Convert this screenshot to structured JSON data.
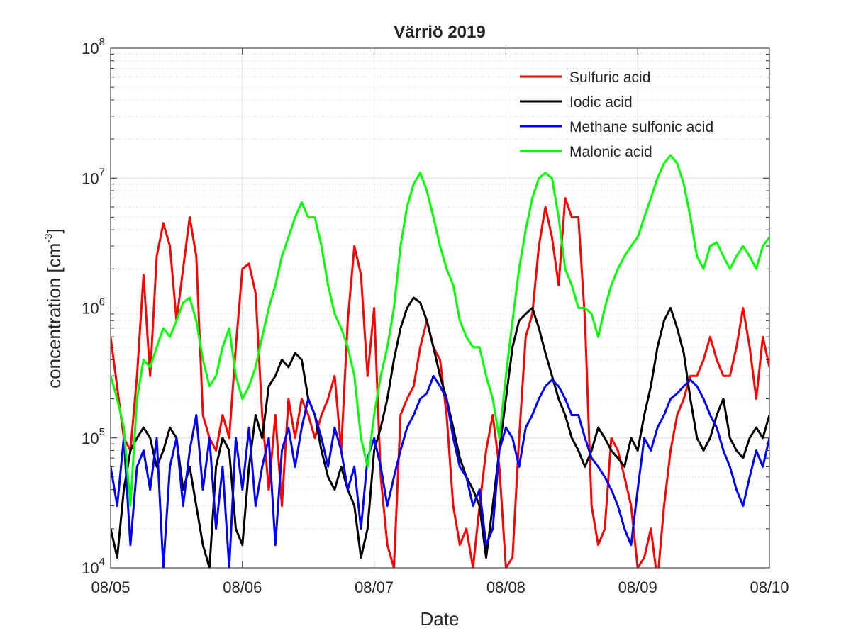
{
  "chart_data": {
    "type": "line",
    "title": "Värriö 2019",
    "xlabel": "Date",
    "ylabel": {
      "base": "concentration [cm",
      "exp": "-3",
      "close": "]"
    },
    "x_ticks": [
      "08/05",
      "08/06",
      "08/07",
      "08/08",
      "08/09",
      "08/10"
    ],
    "xlim": [
      "08/05",
      "08/10"
    ],
    "y_scale": "log",
    "ylim": [
      10000,
      100000000
    ],
    "y_ticks": [
      {
        "base": "10",
        "exp": "4"
      },
      {
        "base": "10",
        "exp": "5"
      },
      {
        "base": "10",
        "exp": "6"
      },
      {
        "base": "10",
        "exp": "7"
      },
      {
        "base": "10",
        "exp": "8"
      }
    ],
    "grid": true,
    "minor_grid": true,
    "legend_position": "top-right",
    "series": [
      {
        "name": "Sulfuric acid",
        "color": "#ff0000",
        "x": [
          0.0,
          0.1,
          0.15,
          0.2,
          0.25,
          0.3,
          0.35,
          0.4,
          0.45,
          0.5,
          0.55,
          0.6,
          0.65,
          0.7,
          0.75,
          0.8,
          0.85,
          0.9,
          0.95,
          1.0,
          1.05,
          1.1,
          1.15,
          1.2,
          1.25,
          1.3,
          1.35,
          1.4,
          1.45,
          1.5,
          1.55,
          1.6,
          1.65,
          1.7,
          1.75,
          1.8,
          1.85,
          1.9,
          1.95,
          2.0,
          2.05,
          2.1,
          2.15,
          2.2,
          2.25,
          2.3,
          2.35,
          2.4,
          2.45,
          2.5,
          2.55,
          2.6,
          2.65,
          2.7,
          2.75,
          2.8,
          2.85,
          2.9,
          2.95,
          3.0,
          3.05,
          3.1,
          3.15,
          3.2,
          3.25,
          3.3,
          3.35,
          3.4,
          3.45,
          3.5,
          3.55,
          3.6,
          3.65,
          3.7,
          3.75,
          3.8,
          3.85,
          3.9,
          3.95,
          4.0,
          4.05,
          4.1,
          4.15,
          4.2,
          4.25,
          4.3,
          4.35,
          4.4,
          4.45,
          4.5,
          4.55,
          4.6,
          4.65,
          4.7,
          4.75,
          4.8,
          4.85,
          4.9,
          4.95,
          5.0
        ],
        "y": [
          600000,
          100000,
          80000,
          300000,
          1800000,
          300000,
          2500000,
          4500000,
          3000000,
          800000,
          2000000,
          5000000,
          2500000,
          150000,
          100000,
          80000,
          150000,
          100000,
          500000,
          2000000,
          2200000,
          1300000,
          150000,
          40000,
          150000,
          30000,
          200000,
          100000,
          200000,
          150000,
          100000,
          150000,
          200000,
          300000,
          80000,
          800000,
          3000000,
          1800000,
          300000,
          1000000,
          50000,
          15000,
          10000,
          150000,
          200000,
          250000,
          500000,
          800000,
          500000,
          400000,
          150000,
          30000,
          15000,
          20000,
          10000,
          30000,
          80000,
          150000,
          60000,
          10000,
          12000,
          100000,
          600000,
          900000,
          3000000,
          6000000,
          3500000,
          1500000,
          7000000,
          5000000,
          5000000,
          800000,
          30000,
          15000,
          20000,
          100000,
          80000,
          50000,
          30000,
          10000,
          12000,
          20000,
          8000,
          30000,
          80000,
          150000,
          200000,
          300000,
          300000,
          400000,
          600000,
          400000,
          300000,
          300000,
          500000,
          1000000,
          500000,
          200000,
          600000,
          350000
        ],
        "line_width": 3
      },
      {
        "name": "Iodic acid",
        "color": "#000000",
        "x": [
          0.0,
          0.05,
          0.1,
          0.15,
          0.2,
          0.25,
          0.3,
          0.35,
          0.4,
          0.45,
          0.5,
          0.55,
          0.6,
          0.65,
          0.7,
          0.75,
          0.8,
          0.85,
          0.9,
          0.95,
          1.0,
          1.05,
          1.1,
          1.15,
          1.2,
          1.25,
          1.3,
          1.35,
          1.4,
          1.45,
          1.5,
          1.55,
          1.6,
          1.65,
          1.7,
          1.75,
          1.8,
          1.85,
          1.9,
          1.95,
          2.0,
          2.05,
          2.1,
          2.15,
          2.2,
          2.25,
          2.3,
          2.35,
          2.4,
          2.45,
          2.5,
          2.55,
          2.6,
          2.65,
          2.7,
          2.75,
          2.8,
          2.85,
          2.9,
          2.95,
          3.0,
          3.05,
          3.1,
          3.15,
          3.2,
          3.25,
          3.3,
          3.35,
          3.4,
          3.45,
          3.5,
          3.55,
          3.6,
          3.65,
          3.7,
          3.75,
          3.8,
          3.85,
          3.9,
          3.95,
          4.0,
          4.05,
          4.1,
          4.15,
          4.2,
          4.25,
          4.3,
          4.35,
          4.4,
          4.45,
          4.5,
          4.55,
          4.6,
          4.65,
          4.7,
          4.75,
          4.8,
          4.85,
          4.9,
          4.95,
          5.0
        ],
        "y": [
          20000,
          12000,
          40000,
          80000,
          100000,
          120000,
          100000,
          60000,
          80000,
          120000,
          100000,
          40000,
          60000,
          30000,
          15000,
          10000,
          60000,
          100000,
          80000,
          20000,
          15000,
          60000,
          150000,
          100000,
          250000,
          300000,
          400000,
          350000,
          450000,
          400000,
          200000,
          150000,
          80000,
          50000,
          40000,
          60000,
          40000,
          30000,
          12000,
          20000,
          80000,
          120000,
          200000,
          400000,
          700000,
          1000000,
          1200000,
          1100000,
          800000,
          500000,
          300000,
          200000,
          120000,
          70000,
          50000,
          40000,
          30000,
          12000,
          30000,
          80000,
          200000,
          500000,
          800000,
          900000,
          1000000,
          700000,
          450000,
          300000,
          200000,
          150000,
          100000,
          80000,
          60000,
          80000,
          120000,
          100000,
          80000,
          70000,
          60000,
          100000,
          80000,
          150000,
          250000,
          500000,
          800000,
          1000000,
          700000,
          450000,
          200000,
          100000,
          80000,
          100000,
          150000,
          200000,
          100000,
          80000,
          70000,
          100000,
          120000,
          100000,
          150000
        ],
        "line_width": 3
      },
      {
        "name": "Methane sulfonic acid",
        "color": "#0000ff",
        "x": [
          0.0,
          0.05,
          0.1,
          0.15,
          0.2,
          0.25,
          0.3,
          0.35,
          0.4,
          0.45,
          0.5,
          0.55,
          0.6,
          0.65,
          0.7,
          0.75,
          0.8,
          0.85,
          0.9,
          0.95,
          1.0,
          1.05,
          1.1,
          1.15,
          1.2,
          1.25,
          1.3,
          1.35,
          1.4,
          1.45,
          1.5,
          1.55,
          1.6,
          1.65,
          1.7,
          1.75,
          1.8,
          1.85,
          1.9,
          1.95,
          2.0,
          2.05,
          2.1,
          2.15,
          2.2,
          2.25,
          2.3,
          2.35,
          2.4,
          2.45,
          2.5,
          2.55,
          2.6,
          2.65,
          2.7,
          2.75,
          2.8,
          2.85,
          2.9,
          2.95,
          3.0,
          3.05,
          3.1,
          3.15,
          3.2,
          3.25,
          3.3,
          3.35,
          3.4,
          3.45,
          3.5,
          3.55,
          3.6,
          3.65,
          3.7,
          3.75,
          3.8,
          3.85,
          3.9,
          3.95,
          4.0,
          4.05,
          4.1,
          4.15,
          4.2,
          4.25,
          4.3,
          4.35,
          4.4,
          4.45,
          4.5,
          4.55,
          4.6,
          4.65,
          4.7,
          4.75,
          4.8,
          4.85,
          4.9,
          4.95,
          5.0
        ],
        "y": [
          60000,
          30000,
          100000,
          15000,
          60000,
          80000,
          40000,
          100000,
          10000,
          60000,
          100000,
          30000,
          80000,
          150000,
          40000,
          100000,
          20000,
          60000,
          10000,
          100000,
          40000,
          120000,
          30000,
          60000,
          100000,
          15000,
          80000,
          120000,
          60000,
          120000,
          200000,
          150000,
          100000,
          60000,
          120000,
          80000,
          40000,
          60000,
          20000,
          70000,
          100000,
          60000,
          30000,
          50000,
          80000,
          120000,
          150000,
          200000,
          220000,
          300000,
          250000,
          200000,
          100000,
          60000,
          50000,
          30000,
          40000,
          15000,
          20000,
          80000,
          120000,
          100000,
          60000,
          120000,
          150000,
          200000,
          250000,
          280000,
          250000,
          200000,
          150000,
          150000,
          100000,
          70000,
          60000,
          50000,
          40000,
          30000,
          20000,
          15000,
          40000,
          100000,
          80000,
          120000,
          150000,
          200000,
          220000,
          250000,
          280000,
          250000,
          200000,
          150000,
          120000,
          80000,
          60000,
          40000,
          30000,
          50000,
          80000,
          60000,
          100000
        ],
        "line_width": 3
      },
      {
        "name": "Malonic acid",
        "color": "#00ff00",
        "x": [
          0.0,
          0.05,
          0.1,
          0.15,
          0.2,
          0.25,
          0.3,
          0.35,
          0.4,
          0.45,
          0.5,
          0.55,
          0.6,
          0.65,
          0.7,
          0.75,
          0.8,
          0.85,
          0.9,
          0.95,
          1.0,
          1.05,
          1.1,
          1.15,
          1.2,
          1.25,
          1.3,
          1.35,
          1.4,
          1.45,
          1.5,
          1.55,
          1.6,
          1.65,
          1.7,
          1.75,
          1.8,
          1.85,
          1.9,
          1.95,
          2.0,
          2.05,
          2.1,
          2.15,
          2.2,
          2.25,
          2.3,
          2.35,
          2.4,
          2.45,
          2.5,
          2.55,
          2.6,
          2.65,
          2.7,
          2.75,
          2.8,
          2.85,
          2.9,
          2.95,
          3.0,
          3.05,
          3.1,
          3.15,
          3.2,
          3.25,
          3.3,
          3.35,
          3.4,
          3.45,
          3.5,
          3.55,
          3.6,
          3.65,
          3.7,
          3.75,
          3.8,
          3.85,
          3.9,
          3.95,
          4.0,
          4.05,
          4.1,
          4.15,
          4.2,
          4.25,
          4.3,
          4.35,
          4.4,
          4.45,
          4.5,
          4.55,
          4.6,
          4.65,
          4.7,
          4.75,
          4.8,
          4.85,
          4.9,
          4.95,
          5.0
        ],
        "y": [
          300000,
          200000,
          120000,
          30000,
          200000,
          400000,
          350000,
          500000,
          700000,
          600000,
          800000,
          1100000,
          1200000,
          800000,
          400000,
          250000,
          300000,
          500000,
          700000,
          300000,
          200000,
          250000,
          350000,
          600000,
          1000000,
          1500000,
          2500000,
          3500000,
          5000000,
          6500000,
          5000000,
          5000000,
          3000000,
          1500000,
          900000,
          700000,
          500000,
          300000,
          100000,
          60000,
          150000,
          300000,
          500000,
          1000000,
          3000000,
          6000000,
          9000000,
          11000000,
          8000000,
          5000000,
          3000000,
          2000000,
          1500000,
          800000,
          600000,
          500000,
          500000,
          300000,
          200000,
          100000,
          300000,
          800000,
          2000000,
          4000000,
          7000000,
          10000000,
          11000000,
          10000000,
          5000000,
          2000000,
          1500000,
          1000000,
          1000000,
          900000,
          600000,
          1000000,
          1500000,
          2000000,
          2500000,
          3000000,
          3500000,
          5000000,
          7000000,
          10000000,
          13000000,
          15000000,
          13000000,
          9000000,
          5000000,
          2500000,
          2000000,
          3000000,
          3200000,
          2500000,
          2000000,
          2500000,
          3000000,
          2500000,
          2000000,
          3000000,
          3500000
        ],
        "line_width": 3
      }
    ]
  }
}
